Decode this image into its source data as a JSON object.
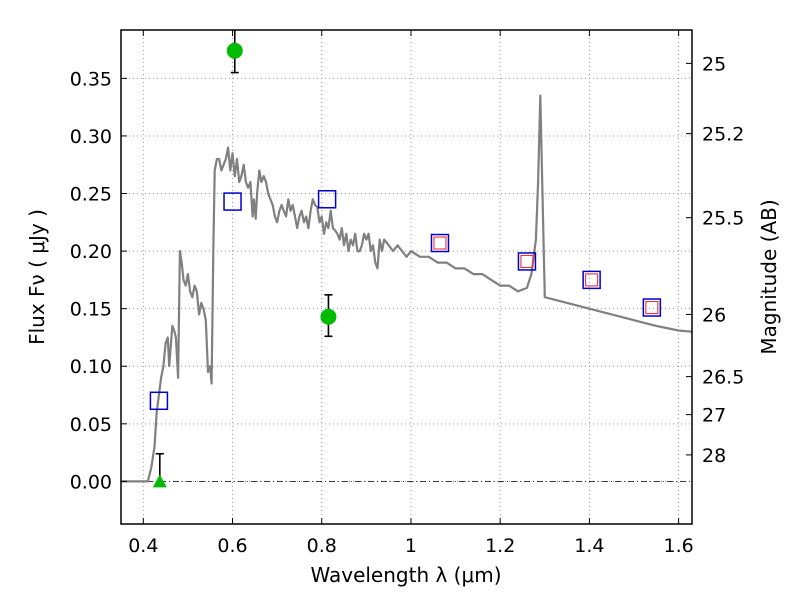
{
  "chart_data": {
    "type": "scatter",
    "xlabel": "Wavelength  λ (μm)",
    "ylabel": "Flux  Fν  ( μJy )",
    "ylabel_right": "Magnitude (AB)",
    "xlim": [
      0.35,
      1.63
    ],
    "ylim": [
      -0.037,
      0.392
    ],
    "grid": true,
    "x_ticks": [
      0.4,
      0.6,
      0.8,
      1.0,
      1.2,
      1.4,
      1.6
    ],
    "x_tick_labels": [
      "0.4",
      "0.6",
      "0.8",
      "1",
      "1.2",
      "1.4",
      "1.6"
    ],
    "y_ticks": [
      0.0,
      0.05,
      0.1,
      0.15,
      0.2,
      0.25,
      0.3,
      0.35
    ],
    "y_tick_labels": [
      "0.00",
      "0.05",
      "0.10",
      "0.15",
      "0.20",
      "0.25",
      "0.30",
      "0.35"
    ],
    "right_ticks": [
      {
        "label": "25",
        "flux": 0.363
      },
      {
        "label": "25.2",
        "flux": 0.302
      },
      {
        "label": "25.5",
        "flux": 0.229
      },
      {
        "label": "26",
        "flux": 0.145
      },
      {
        "label": "26.5",
        "flux": 0.091
      },
      {
        "label": "27",
        "flux": 0.058
      },
      {
        "label": "28",
        "flux": 0.023
      }
    ],
    "colors": {
      "model": "#808080",
      "detections": "#00bb00",
      "model_bands": "#0000cc",
      "inner_markers": "#ee3333"
    },
    "series": [
      {
        "kind": "line",
        "x": [
          0.35,
          0.41,
          0.418,
          0.425,
          0.43,
          0.44,
          0.445,
          0.45,
          0.455,
          0.458,
          0.462,
          0.465,
          0.47,
          0.473,
          0.478,
          0.482,
          0.486,
          0.49,
          0.495,
          0.5,
          0.505,
          0.51,
          0.515,
          0.52,
          0.525,
          0.53,
          0.535,
          0.54,
          0.545,
          0.55,
          0.553,
          0.557,
          0.56,
          0.565,
          0.57,
          0.575,
          0.58,
          0.585,
          0.59,
          0.595,
          0.6,
          0.605,
          0.61,
          0.615,
          0.62,
          0.625,
          0.63,
          0.635,
          0.64,
          0.645,
          0.648,
          0.652,
          0.655,
          0.66,
          0.665,
          0.67,
          0.675,
          0.68,
          0.685,
          0.69,
          0.695,
          0.7,
          0.705,
          0.71,
          0.715,
          0.72,
          0.725,
          0.73,
          0.735,
          0.74,
          0.745,
          0.75,
          0.755,
          0.76,
          0.765,
          0.77,
          0.775,
          0.78,
          0.785,
          0.79,
          0.795,
          0.8,
          0.805,
          0.81,
          0.815,
          0.82,
          0.825,
          0.83,
          0.835,
          0.84,
          0.845,
          0.85,
          0.855,
          0.86,
          0.865,
          0.87,
          0.875,
          0.88,
          0.885,
          0.89,
          0.895,
          0.9,
          0.905,
          0.91,
          0.915,
          0.92,
          0.925,
          0.93,
          0.935,
          0.94,
          0.95,
          0.96,
          0.97,
          0.98,
          0.99,
          1.0,
          1.02,
          1.04,
          1.06,
          1.08,
          1.1,
          1.12,
          1.14,
          1.16,
          1.18,
          1.2,
          1.22,
          1.24,
          1.26,
          1.27,
          1.28,
          1.285,
          1.29,
          1.3,
          1.35,
          1.4,
          1.45,
          1.5,
          1.55,
          1.6,
          1.63
        ],
        "y": [
          0.0,
          0.0,
          0.012,
          0.03,
          0.06,
          0.09,
          0.1,
          0.12,
          0.125,
          0.1,
          0.12,
          0.135,
          0.13,
          0.125,
          0.09,
          0.2,
          0.19,
          0.175,
          0.17,
          0.18,
          0.165,
          0.16,
          0.17,
          0.165,
          0.145,
          0.155,
          0.15,
          0.14,
          0.095,
          0.1,
          0.085,
          0.2,
          0.27,
          0.28,
          0.28,
          0.27,
          0.275,
          0.28,
          0.29,
          0.27,
          0.285,
          0.265,
          0.28,
          0.26,
          0.265,
          0.275,
          0.26,
          0.255,
          0.26,
          0.23,
          0.245,
          0.228,
          0.25,
          0.27,
          0.26,
          0.265,
          0.26,
          0.25,
          0.245,
          0.24,
          0.23,
          0.225,
          0.235,
          0.24,
          0.235,
          0.23,
          0.245,
          0.235,
          0.24,
          0.23,
          0.22,
          0.23,
          0.235,
          0.225,
          0.23,
          0.22,
          0.235,
          0.245,
          0.24,
          0.238,
          0.225,
          0.23,
          0.215,
          0.225,
          0.22,
          0.235,
          0.22,
          0.218,
          0.215,
          0.21,
          0.22,
          0.205,
          0.215,
          0.2,
          0.21,
          0.205,
          0.215,
          0.2,
          0.2,
          0.205,
          0.215,
          0.21,
          0.215,
          0.2,
          0.205,
          0.19,
          0.185,
          0.21,
          0.2,
          0.21,
          0.205,
          0.2,
          0.205,
          0.2,
          0.195,
          0.2,
          0.195,
          0.195,
          0.19,
          0.19,
          0.185,
          0.185,
          0.18,
          0.18,
          0.175,
          0.17,
          0.17,
          0.165,
          0.168,
          0.18,
          0.21,
          0.26,
          0.335,
          0.16,
          0.155,
          0.15,
          0.145,
          0.14,
          0.135,
          0.131,
          0.13
        ]
      },
      {
        "kind": "open-squares",
        "x": [
          0.435,
          0.6,
          0.812,
          1.065,
          1.26,
          1.405,
          1.54
        ],
        "y": [
          0.07,
          0.243,
          0.245,
          0.207,
          0.191,
          0.175,
          0.151
        ]
      },
      {
        "kind": "inner-squares",
        "x": [
          1.065,
          1.26,
          1.405,
          1.54
        ],
        "y": [
          0.207,
          0.191,
          0.175,
          0.151
        ]
      },
      {
        "kind": "detections",
        "x": [
          0.605,
          0.815
        ],
        "y": [
          0.374,
          0.143
        ],
        "err_low": [
          0.355,
          0.126
        ],
        "err_high": [
          0.392,
          0.162
        ]
      },
      {
        "kind": "upper-limit",
        "x": [
          0.437
        ],
        "y": [
          0.0
        ],
        "err_high": [
          0.024
        ]
      }
    ]
  }
}
